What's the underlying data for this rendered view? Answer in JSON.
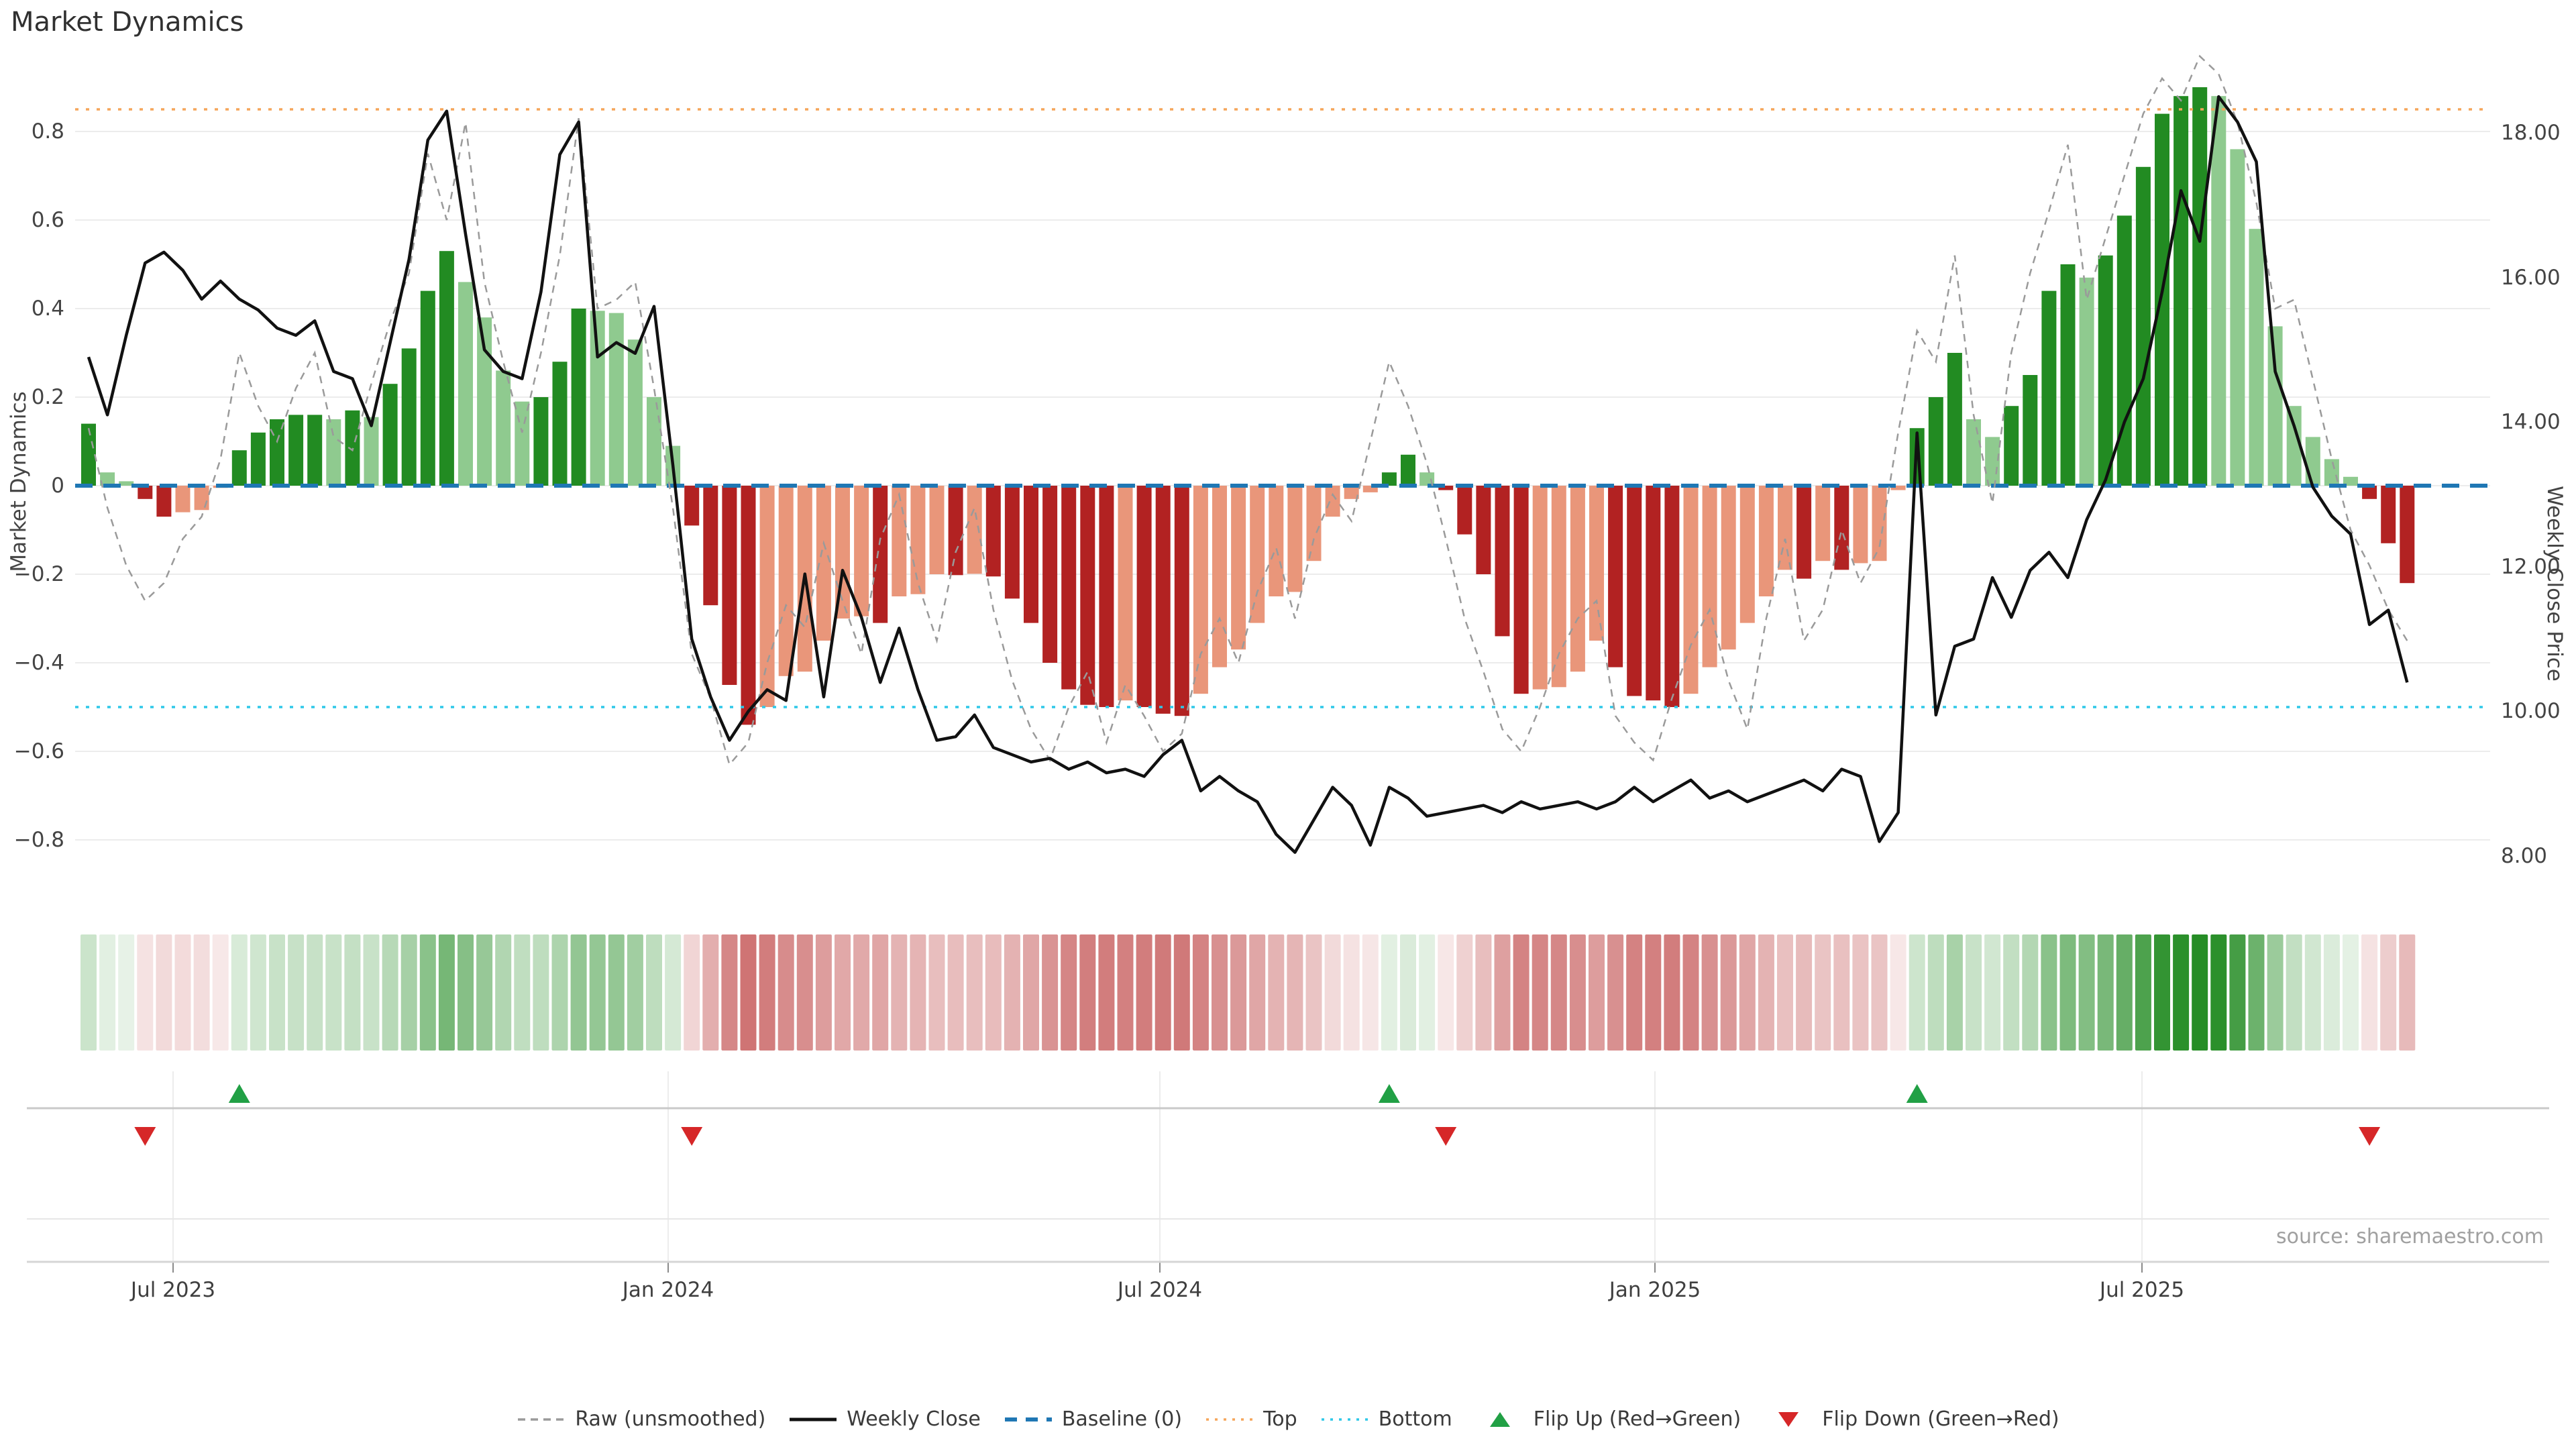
{
  "page": {
    "title": "Market Dynamics",
    "source_note": "source: sharemaestro.com"
  },
  "chart_data": {
    "type": "bar",
    "subtype": "weekly market-dynamics bars + dual-axis price line + raw dashed line + heatmap strip + flip markers",
    "title": "Market Dynamics",
    "left_axis": {
      "label": "Market Dynamics",
      "tick_labels": [
        "0.8",
        "0.6",
        "0.4",
        "0.2",
        "0",
        "−0.2",
        "−0.4",
        "−0.6",
        "−0.8"
      ],
      "tick_values": [
        0.8,
        0.6,
        0.4,
        0.2,
        0,
        -0.2,
        -0.4,
        -0.6,
        -0.8
      ],
      "ylim": [
        -0.95,
        0.97
      ],
      "grid": true
    },
    "right_axis": {
      "label": "Weekly Close Price",
      "tick_labels": [
        "18.00",
        "16.00",
        "14.00",
        "12.00",
        "10.00",
        "8.00"
      ],
      "tick_values": [
        18,
        16,
        14,
        12,
        10,
        8
      ],
      "ylim": [
        7.3,
        19.05
      ]
    },
    "x_axis": {
      "tick_labels": [
        "Jul 2023",
        "Jan 2024",
        "Jul 2024",
        "Jan 2025",
        "Jul 2025"
      ],
      "weeks_total": 124
    },
    "reference_lines": {
      "baseline": {
        "label": "Baseline (0)",
        "value": 0,
        "color": "#1f77b4",
        "style": "dashed"
      },
      "top": {
        "label": "Top",
        "value": 0.85,
        "color": "#f5a55a",
        "style": "dotted"
      },
      "bottom": {
        "label": "Bottom",
        "value": -0.5,
        "color": "#2ec8e8",
        "style": "dotted"
      }
    },
    "series": [
      {
        "name": "Market Dynamics (bars)",
        "type": "bar",
        "axis": "left",
        "values": [
          0.14,
          0.03,
          0.01,
          -0.03,
          -0.07,
          -0.06,
          -0.055,
          -0.005,
          0.08,
          0.12,
          0.15,
          0.16,
          0.16,
          0.15,
          0.17,
          0.155,
          0.23,
          0.31,
          0.44,
          0.53,
          0.46,
          0.38,
          0.26,
          0.19,
          0.2,
          0.28,
          0.4,
          0.395,
          0.39,
          0.33,
          0.2,
          0.09,
          -0.09,
          -0.27,
          -0.45,
          -0.54,
          -0.5,
          -0.43,
          -0.42,
          -0.35,
          -0.3,
          -0.295,
          -0.31,
          -0.25,
          -0.245,
          -0.2,
          -0.202,
          -0.199,
          -0.205,
          -0.255,
          -0.31,
          -0.4,
          -0.46,
          -0.495,
          -0.5,
          -0.485,
          -0.5,
          -0.515,
          -0.52,
          -0.47,
          -0.41,
          -0.37,
          -0.31,
          -0.25,
          -0.24,
          -0.17,
          -0.07,
          -0.03,
          -0.015,
          0.03,
          0.07,
          0.03,
          -0.01,
          -0.11,
          -0.2,
          -0.34,
          -0.47,
          -0.46,
          -0.455,
          -0.42,
          -0.35,
          -0.41,
          -0.475,
          -0.485,
          -0.5,
          -0.47,
          -0.41,
          -0.37,
          -0.31,
          -0.25,
          -0.19,
          -0.21,
          -0.17,
          -0.19,
          -0.175,
          -0.17,
          -0.01,
          0.13,
          0.2,
          0.3,
          0.15,
          0.11,
          0.18,
          0.25,
          0.44,
          0.5,
          0.47,
          0.52,
          0.61,
          0.72,
          0.84,
          0.88,
          0.9,
          0.88,
          0.76,
          0.58,
          0.36,
          0.18,
          0.11,
          0.06,
          0.02,
          -0.03,
          -0.13,
          -0.22
        ]
      },
      {
        "name": "Raw (unsmoothed)",
        "type": "line",
        "style": "dashed",
        "color": "#9a9a9a",
        "axis": "left",
        "values": [
          0.13,
          -0.05,
          -0.18,
          -0.26,
          -0.22,
          -0.12,
          -0.07,
          0.06,
          0.3,
          0.18,
          0.1,
          0.22,
          0.3,
          0.11,
          0.08,
          0.23,
          0.37,
          0.48,
          0.75,
          0.6,
          0.82,
          0.46,
          0.28,
          0.12,
          0.3,
          0.52,
          0.83,
          0.4,
          0.42,
          0.46,
          0.22,
          -0.05,
          -0.38,
          -0.48,
          -0.63,
          -0.58,
          -0.4,
          -0.27,
          -0.32,
          -0.13,
          -0.26,
          -0.38,
          -0.12,
          -0.02,
          -0.22,
          -0.35,
          -0.15,
          -0.05,
          -0.28,
          -0.44,
          -0.55,
          -0.62,
          -0.5,
          -0.42,
          -0.58,
          -0.45,
          -0.52,
          -0.6,
          -0.56,
          -0.38,
          -0.3,
          -0.4,
          -0.24,
          -0.14,
          -0.3,
          -0.12,
          -0.02,
          -0.08,
          0.1,
          0.28,
          0.18,
          0.05,
          -0.12,
          -0.3,
          -0.42,
          -0.55,
          -0.6,
          -0.5,
          -0.38,
          -0.3,
          -0.26,
          -0.52,
          -0.58,
          -0.62,
          -0.48,
          -0.36,
          -0.28,
          -0.44,
          -0.55,
          -0.3,
          -0.12,
          -0.35,
          -0.28,
          -0.1,
          -0.22,
          -0.14,
          0.12,
          0.35,
          0.28,
          0.52,
          0.16,
          -0.04,
          0.3,
          0.48,
          0.62,
          0.77,
          0.42,
          0.56,
          0.7,
          0.84,
          0.92,
          0.87,
          0.97,
          0.93,
          0.82,
          0.64,
          0.4,
          0.42,
          0.24,
          0.06,
          -0.1,
          -0.18,
          -0.28,
          -0.35
        ]
      },
      {
        "name": "Weekly Close",
        "type": "line",
        "style": "solid",
        "color": "#111111",
        "axis": "right",
        "values": [
          14.9,
          14.1,
          15.2,
          16.2,
          16.35,
          16.1,
          15.7,
          15.95,
          15.7,
          15.55,
          15.3,
          15.2,
          15.4,
          14.7,
          14.6,
          13.95,
          15.1,
          16.25,
          17.9,
          18.3,
          16.6,
          15.0,
          14.7,
          14.6,
          15.8,
          17.7,
          18.15,
          14.9,
          15.1,
          14.95,
          15.6,
          13.4,
          11.0,
          10.2,
          9.6,
          10.0,
          10.3,
          10.15,
          11.9,
          10.2,
          11.95,
          11.3,
          10.4,
          11.15,
          10.3,
          9.6,
          9.65,
          9.95,
          9.5,
          9.4,
          9.3,
          9.35,
          9.2,
          9.3,
          9.15,
          9.2,
          9.1,
          9.4,
          9.6,
          8.9,
          9.1,
          8.9,
          8.75,
          8.3,
          8.05,
          8.5,
          8.95,
          8.7,
          8.15,
          8.95,
          8.8,
          8.55,
          8.6,
          8.65,
          8.7,
          8.6,
          8.75,
          8.65,
          8.7,
          8.75,
          8.65,
          8.75,
          8.95,
          8.75,
          8.9,
          9.05,
          8.8,
          8.9,
          8.75,
          8.85,
          8.95,
          9.05,
          8.9,
          9.2,
          9.1,
          8.2,
          8.6,
          13.85,
          9.95,
          10.9,
          11.0,
          11.85,
          11.3,
          11.95,
          12.2,
          11.85,
          12.65,
          13.2,
          14.0,
          14.6,
          15.8,
          17.2,
          16.5,
          18.5,
          18.15,
          17.6,
          14.7,
          13.95,
          13.1,
          12.7,
          12.45,
          11.2,
          11.4,
          10.4
        ]
      }
    ],
    "heatmap_strip": {
      "description": "one cell per week; green for positive bar value, red for negative; color intensity proportional to |value|",
      "positive_color": "#228B22",
      "negative_color": "#b22222"
    },
    "flip_markers": {
      "up": {
        "label": "Flip Up (Red→Green)",
        "color": "#21a045",
        "week_indices": [
          8,
          69,
          97
        ]
      },
      "down": {
        "label": "Flip Down (Green→Red)",
        "color": "#d62728",
        "week_indices": [
          3,
          32,
          72,
          121
        ]
      }
    },
    "legend": [
      {
        "label": "Raw (unsmoothed)",
        "glyph": "dashed-line",
        "color": "#9a9a9a"
      },
      {
        "label": "Weekly Close",
        "glyph": "solid-line",
        "color": "#111111"
      },
      {
        "label": "Baseline (0)",
        "glyph": "dashed-line",
        "color": "#1f77b4"
      },
      {
        "label": "Top",
        "glyph": "dotted-line",
        "color": "#f5a55a"
      },
      {
        "label": "Bottom",
        "glyph": "dotted-line",
        "color": "#2ec8e8"
      },
      {
        "label": "Flip Up (Red→Green)",
        "glyph": "triangle-up",
        "color": "#21a045"
      },
      {
        "label": "Flip Down (Green→Red)",
        "glyph": "triangle-down",
        "color": "#d62728"
      }
    ],
    "colors": {
      "bar_up_strong": "#228B22",
      "bar_up_weak": "#8fca8f",
      "bar_down_strong": "#b22222",
      "bar_down_weak": "#e9967a",
      "gridline": "#ececec",
      "lane_divider": "#c9c9c9",
      "text": "#3d3d3d"
    }
  }
}
